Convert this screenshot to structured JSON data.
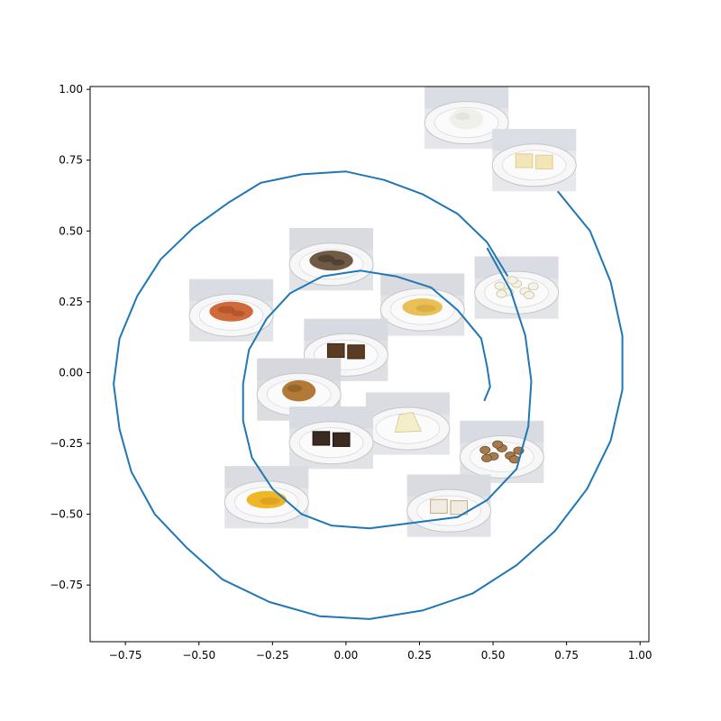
{
  "chart_data": {
    "type": "line",
    "title": "",
    "xlabel": "",
    "ylabel": "",
    "xlim": [
      -0.87,
      1.03
    ],
    "ylim": [
      -0.95,
      1.01
    ],
    "x_ticks": [
      {
        "value": -0.75,
        "label": "−0.75"
      },
      {
        "value": -0.5,
        "label": "−0.50"
      },
      {
        "value": -0.25,
        "label": "−0.25"
      },
      {
        "value": 0.0,
        "label": "0.00"
      },
      {
        "value": 0.25,
        "label": "0.25"
      },
      {
        "value": 0.5,
        "label": "0.50"
      },
      {
        "value": 0.75,
        "label": "0.75"
      },
      {
        "value": 1.0,
        "label": "1.00"
      }
    ],
    "y_ticks": [
      {
        "value": -0.75,
        "label": "−0.75"
      },
      {
        "value": -0.5,
        "label": "−0.50"
      },
      {
        "value": -0.25,
        "label": "−0.25"
      },
      {
        "value": 0.0,
        "label": "0.00"
      },
      {
        "value": 0.25,
        "label": "0.25"
      },
      {
        "value": 0.5,
        "label": "0.50"
      },
      {
        "value": 0.75,
        "label": "0.75"
      },
      {
        "value": 1.0,
        "label": "1.00"
      }
    ],
    "grid": false,
    "line_color": "#1f77b4",
    "series": [
      {
        "points": [
          [
            0.48,
            0.44
          ],
          [
            0.56,
            0.29
          ],
          [
            0.61,
            0.13
          ],
          [
            0.63,
            -0.03
          ],
          [
            0.62,
            -0.19
          ],
          [
            0.58,
            -0.34
          ],
          [
            0.48,
            -0.45
          ],
          [
            0.38,
            -0.51
          ],
          [
            0.23,
            -0.53
          ],
          [
            0.08,
            -0.55
          ],
          [
            -0.05,
            -0.54
          ],
          [
            -0.15,
            -0.5
          ],
          [
            -0.25,
            -0.41
          ],
          [
            -0.32,
            -0.3
          ],
          [
            -0.35,
            -0.17
          ],
          [
            -0.35,
            -0.04
          ],
          [
            -0.33,
            0.08
          ],
          [
            -0.27,
            0.19
          ],
          [
            -0.19,
            0.28
          ],
          [
            -0.08,
            0.34
          ],
          [
            0.05,
            0.36
          ],
          [
            0.17,
            0.34
          ],
          [
            0.29,
            0.3
          ],
          [
            0.38,
            0.22
          ],
          [
            0.46,
            0.12
          ],
          [
            0.48,
            0.02
          ],
          [
            0.49,
            -0.05
          ],
          [
            0.47,
            -0.1
          ]
        ]
      },
      {
        "points": [
          [
            0.72,
            0.64
          ],
          [
            0.83,
            0.5
          ],
          [
            0.9,
            0.32
          ],
          [
            0.94,
            0.13
          ],
          [
            0.94,
            -0.06
          ],
          [
            0.9,
            -0.24
          ],
          [
            0.82,
            -0.41
          ],
          [
            0.71,
            -0.56
          ],
          [
            0.58,
            -0.68
          ],
          [
            0.43,
            -0.78
          ],
          [
            0.26,
            -0.84
          ],
          [
            0.08,
            -0.87
          ],
          [
            -0.09,
            -0.86
          ],
          [
            -0.26,
            -0.81
          ],
          [
            -0.42,
            -0.73
          ],
          [
            -0.54,
            -0.62
          ],
          [
            -0.65,
            -0.5
          ],
          [
            -0.73,
            -0.35
          ],
          [
            -0.77,
            -0.2
          ],
          [
            -0.79,
            -0.04
          ],
          [
            -0.77,
            0.12
          ],
          [
            -0.71,
            0.27
          ],
          [
            -0.63,
            0.4
          ],
          [
            -0.52,
            0.51
          ],
          [
            -0.4,
            0.6
          ],
          [
            -0.29,
            0.67
          ],
          [
            -0.15,
            0.7
          ],
          [
            0.0,
            0.71
          ],
          [
            0.13,
            0.68
          ],
          [
            0.26,
            0.63
          ],
          [
            0.38,
            0.56
          ],
          [
            0.48,
            0.46
          ],
          [
            0.55,
            0.34
          ]
        ]
      }
    ],
    "images": [
      {
        "name": "rice",
        "x": 0.41,
        "y": 0.9,
        "w": 0.285,
        "h": 0.22,
        "plate": "#e4e6ea",
        "food": "#f0f0ea",
        "food2": "#d9d9d0",
        "shape": "mound"
      },
      {
        "name": "rice-krispie-bars",
        "x": 0.64,
        "y": 0.75,
        "w": 0.285,
        "h": 0.22,
        "plate": "#e7e8ec",
        "food": "#f2e6b8",
        "food2": "#e0cd8c",
        "shape": "bars"
      },
      {
        "name": "popcorn",
        "x": 0.58,
        "y": 0.3,
        "w": 0.285,
        "h": 0.22,
        "plate": "#e3e4e8",
        "food": "#f5f2e6",
        "food2": "#c9c2a8",
        "shape": "scatter"
      },
      {
        "name": "mushrooms",
        "x": -0.05,
        "y": 0.4,
        "w": 0.285,
        "h": 0.22,
        "plate": "#e2e3e7",
        "food": "#6e5a45",
        "food2": "#3e3226",
        "shape": "pile"
      },
      {
        "name": "applesauce",
        "x": 0.26,
        "y": 0.24,
        "w": 0.285,
        "h": 0.22,
        "plate": "#e2e3e7",
        "food": "#e8c056",
        "food2": "#c99a2d",
        "shape": "puddle"
      },
      {
        "name": "pasta",
        "x": -0.39,
        "y": 0.22,
        "w": 0.285,
        "h": 0.22,
        "plate": "#e3e4e8",
        "food": "#cf6a3a",
        "food2": "#a44b25",
        "shape": "pile"
      },
      {
        "name": "sticks",
        "x": 0.0,
        "y": 0.08,
        "w": 0.285,
        "h": 0.22,
        "plate": "#dfe0e4",
        "food": "#5a3c22",
        "food2": "#3a2412",
        "shape": "bars"
      },
      {
        "name": "muffin",
        "x": -0.16,
        "y": -0.06,
        "w": 0.285,
        "h": 0.22,
        "plate": "#dcdde1",
        "food": "#b27a36",
        "food2": "#7e4f1c",
        "shape": "mound"
      },
      {
        "name": "cake",
        "x": 0.21,
        "y": -0.18,
        "w": 0.285,
        "h": 0.22,
        "plate": "#e4e5e9",
        "food": "#f4efc8",
        "food2": "#d8cf98",
        "shape": "wedge"
      },
      {
        "name": "brownies",
        "x": -0.05,
        "y": -0.23,
        "w": 0.285,
        "h": 0.22,
        "plate": "#e1e2e6",
        "food": "#3b2a1f",
        "food2": "#1e140d",
        "shape": "bars"
      },
      {
        "name": "cookies",
        "x": 0.53,
        "y": -0.28,
        "w": 0.285,
        "h": 0.22,
        "plate": "#e1e2e6",
        "food": "#a57a4c",
        "food2": "#6b4a29",
        "shape": "scatter"
      },
      {
        "name": "mac-and-cheese",
        "x": -0.27,
        "y": -0.44,
        "w": 0.285,
        "h": 0.22,
        "plate": "#e4e5e9",
        "food": "#f0b62a",
        "food2": "#c98c10",
        "shape": "puddle"
      },
      {
        "name": "pop-tarts",
        "x": 0.35,
        "y": -0.47,
        "w": 0.285,
        "h": 0.22,
        "plate": "#e2e3e7",
        "food": "#f0ece4",
        "food2": "#c9a97a",
        "shape": "bars"
      }
    ]
  }
}
